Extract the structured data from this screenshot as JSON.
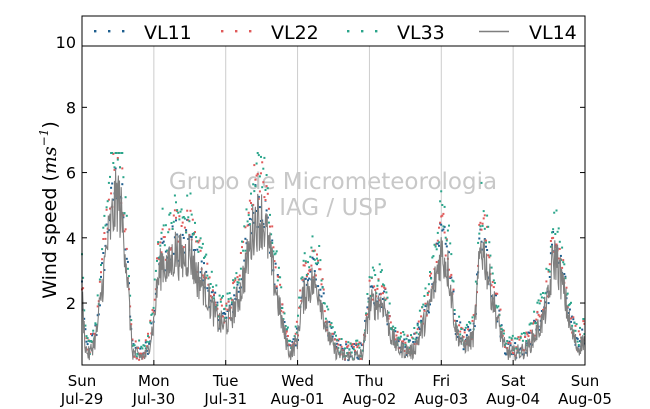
{
  "chart_data": {
    "type": "line",
    "ylabel": "Wind speed ($ms^{-1}$)",
    "ylim": [
      0.1,
      10.8
    ],
    "xlim": [
      0,
      7
    ],
    "yticks": [
      2,
      4,
      6,
      8,
      10
    ],
    "ytick_labels": [
      "2",
      "4",
      "6",
      "8",
      "10"
    ],
    "xtick_positions": [
      0,
      1,
      2,
      3,
      4,
      5,
      6,
      7
    ],
    "xtick_labels": [
      [
        "Sun",
        "Jul-29"
      ],
      [
        "Mon",
        "Jul-30"
      ],
      [
        "Tue",
        "Jul-31"
      ],
      [
        "Wed",
        "Aug-01"
      ],
      [
        "Thu",
        "Aug-02"
      ],
      [
        "Fri",
        "Aug-03"
      ],
      [
        "Sat",
        "Aug-04"
      ],
      [
        "Sun",
        "Aug-05"
      ]
    ],
    "grid": "vertical",
    "legend_position": "top",
    "watermark": [
      "Grupo de Micrometeorologia",
      "IAG / USP"
    ],
    "series": [
      {
        "name": "VL11",
        "style": "dots",
        "color": "#1f5f8f"
      },
      {
        "name": "VL22",
        "style": "dots",
        "color": "#e05a5a"
      },
      {
        "name": "VL33",
        "style": "dots",
        "color": "#2aa58a"
      },
      {
        "name": "VL14",
        "style": "line",
        "color": "#7f7f7f"
      }
    ],
    "profile": {
      "x": [
        0,
        0.05,
        0.1,
        0.2,
        0.35,
        0.45,
        0.5,
        0.55,
        0.6,
        0.7,
        0.8,
        0.9,
        1.0,
        1.05,
        1.12,
        1.2,
        1.3,
        1.4,
        1.5,
        1.6,
        1.7,
        1.8,
        1.9,
        2.0,
        2.1,
        2.2,
        2.3,
        2.4,
        2.5,
        2.55,
        2.6,
        2.65,
        2.7,
        2.8,
        2.9,
        3.0,
        3.05,
        3.1,
        3.2,
        3.3,
        3.4,
        3.5,
        3.6,
        3.7,
        3.8,
        3.9,
        4.0,
        4.1,
        4.2,
        4.3,
        4.4,
        4.5,
        4.6,
        4.7,
        4.8,
        4.9,
        5.0,
        5.1,
        5.2,
        5.3,
        5.4,
        5.45,
        5.5,
        5.55,
        5.6,
        5.7,
        5.8,
        5.9,
        6.0,
        6.1,
        6.2,
        6.3,
        6.4,
        6.5,
        6.55,
        6.6,
        6.7,
        6.8,
        6.9,
        7.0
      ],
      "y": [
        2.2,
        0.6,
        0.4,
        1.0,
        3.8,
        4.9,
        5.3,
        4.6,
        3.8,
        0.5,
        0.35,
        0.4,
        1.4,
        2.6,
        3.3,
        3.0,
        3.6,
        3.3,
        3.6,
        2.8,
        2.5,
        1.9,
        1.4,
        1.3,
        1.7,
        2.3,
        3.3,
        4.5,
        4.6,
        4.3,
        3.7,
        3.0,
        2.4,
        1.2,
        0.4,
        0.9,
        1.9,
        2.3,
        2.6,
        2.4,
        1.2,
        0.6,
        0.4,
        0.35,
        0.35,
        0.4,
        1.9,
        2.0,
        2.0,
        1.0,
        0.6,
        0.55,
        0.5,
        1.0,
        1.6,
        2.5,
        3.6,
        3.0,
        1.2,
        0.7,
        0.8,
        1.0,
        2.3,
        3.8,
        3.5,
        2.3,
        1.3,
        0.5,
        0.45,
        0.5,
        0.6,
        1.0,
        1.4,
        2.2,
        3.3,
        3.4,
        2.4,
        1.2,
        0.6,
        0.9
      ]
    }
  }
}
